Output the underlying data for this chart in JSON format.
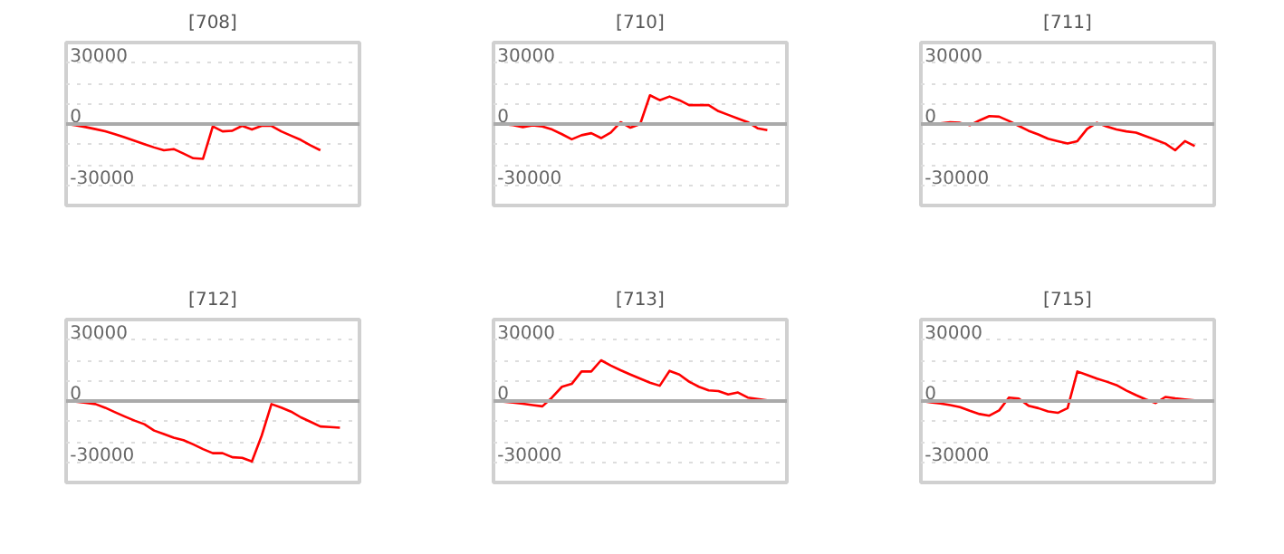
{
  "chart_data": [
    {
      "type": "line",
      "title": "[708]",
      "categories": [
        null,
        null,
        null,
        null,
        null,
        null,
        null,
        null,
        null,
        null,
        null,
        null,
        null,
        null,
        null,
        null,
        null,
        null,
        null,
        null,
        null,
        null,
        null,
        null,
        null,
        null,
        null,
        null,
        null,
        null,
        null
      ],
      "series": [
        {
          "color": "#ff0000",
          "values": [
            0,
            -700,
            -1500,
            -2500,
            -3600,
            -5000,
            -6600,
            -8200,
            -9900,
            -11500,
            -12900,
            -12300,
            -14500,
            -16800,
            -17100,
            -1200,
            -3600,
            -3300,
            -900,
            -2700,
            -900,
            -900,
            -3600,
            -5700,
            -7800,
            -10500,
            -12900,
            null,
            null,
            null,
            null
          ]
        }
      ],
      "ylim": [
        -40000,
        40000
      ],
      "yticks": [
        {
          "value": -40000,
          "label": null
        },
        -30000,
        {
          "value": -20000,
          "label": null
        },
        {
          "value": -10000,
          "label": null
        },
        0,
        {
          "value": 10000,
          "label": null
        },
        {
          "value": 20000,
          "label": null
        },
        30000,
        {
          "value": 40000,
          "label": null
        }
      ],
      "grid": "y",
      "tick_labels": "y",
      "ref_lines": [
        {
          "axis": "y",
          "value": 0,
          "color": "#aaaaaa"
        }
      ]
    },
    {
      "type": "line",
      "title": "[710]",
      "categories": [
        null,
        null,
        null,
        null,
        null,
        null,
        null,
        null,
        null,
        null,
        null,
        null,
        null,
        null,
        null,
        null,
        null,
        null,
        null,
        null,
        null,
        null,
        null,
        null,
        null,
        null,
        null,
        null,
        null,
        null,
        null
      ],
      "series": [
        {
          "color": "#ff0000",
          "values": [
            0,
            -100,
            -500,
            -1500,
            -600,
            -1200,
            -2700,
            -5000,
            -7500,
            -5500,
            -4500,
            -6900,
            -4200,
            900,
            -1800,
            0,
            14100,
            11700,
            13500,
            11700,
            9300,
            9300,
            9300,
            6300,
            4500,
            2700,
            900,
            -2100,
            -3000,
            null,
            null
          ]
        }
      ],
      "ylim": [
        -40000,
        40000
      ],
      "yticks": [
        {
          "value": -40000,
          "label": null
        },
        -30000,
        {
          "value": -20000,
          "label": null
        },
        {
          "value": -10000,
          "label": null
        },
        0,
        {
          "value": 10000,
          "label": null
        },
        {
          "value": 20000,
          "label": null
        },
        30000,
        {
          "value": 40000,
          "label": null
        }
      ],
      "grid": "y",
      "tick_labels": "y",
      "ref_lines": [
        {
          "axis": "y",
          "value": 0,
          "color": "#aaaaaa"
        }
      ]
    },
    {
      "type": "line",
      "title": "[711]",
      "categories": [
        null,
        null,
        null,
        null,
        null,
        null,
        null,
        null,
        null,
        null,
        null,
        null,
        null,
        null,
        null,
        null,
        null,
        null,
        null,
        null,
        null,
        null,
        null,
        null,
        null,
        null,
        null,
        null,
        null,
        null,
        null
      ],
      "series": [
        {
          "color": "#ff0000",
          "values": [
            0,
            0,
            300,
            900,
            600,
            -600,
            1800,
            3900,
            3600,
            1500,
            -900,
            -3300,
            -5100,
            -7200,
            -8400,
            -9600,
            -8400,
            -2400,
            600,
            -1200,
            -2700,
            -3600,
            -4200,
            -6000,
            -7800,
            -9600,
            -12900,
            -8400,
            -10800,
            null,
            null
          ]
        }
      ],
      "ylim": [
        -40000,
        40000
      ],
      "yticks": [
        {
          "value": -40000,
          "label": null
        },
        -30000,
        {
          "value": -20000,
          "label": null
        },
        {
          "value": -10000,
          "label": null
        },
        0,
        {
          "value": 10000,
          "label": null
        },
        {
          "value": 20000,
          "label": null
        },
        30000,
        {
          "value": 40000,
          "label": null
        }
      ],
      "grid": "y",
      "tick_labels": "y",
      "ref_lines": [
        {
          "axis": "y",
          "value": 0,
          "color": "#aaaaaa"
        }
      ]
    },
    {
      "type": "line",
      "title": "[712]",
      "categories": [
        null,
        null,
        null,
        null,
        null,
        null,
        null,
        null,
        null,
        null,
        null,
        null,
        null,
        null,
        null,
        null,
        null,
        null,
        null,
        null,
        null,
        null,
        null,
        null,
        null,
        null,
        null,
        null,
        null,
        null,
        null
      ],
      "series": [
        {
          "color": "#ff0000",
          "values": [
            0,
            -300,
            -900,
            -1500,
            -3300,
            -5500,
            -7600,
            -9600,
            -11400,
            -14500,
            -16200,
            -18000,
            -19200,
            -21300,
            -23600,
            -25600,
            -25600,
            -27600,
            -27900,
            -29700,
            -17000,
            -1500,
            -3200,
            -5200,
            -8000,
            -10200,
            -12500,
            -12800,
            -13100,
            null,
            null
          ]
        }
      ],
      "ylim": [
        -40000,
        40000
      ],
      "yticks": [
        {
          "value": -40000,
          "label": null
        },
        -30000,
        {
          "value": -20000,
          "label": null
        },
        {
          "value": -10000,
          "label": null
        },
        0,
        {
          "value": 10000,
          "label": null
        },
        {
          "value": 20000,
          "label": null
        },
        30000,
        {
          "value": 40000,
          "label": null
        }
      ],
      "grid": "y",
      "tick_labels": "y",
      "ref_lines": [
        {
          "axis": "y",
          "value": 0,
          "color": "#aaaaaa"
        }
      ]
    },
    {
      "type": "line",
      "title": "[713]",
      "categories": [
        null,
        null,
        null,
        null,
        null,
        null,
        null,
        null,
        null,
        null,
        null,
        null,
        null,
        null,
        null,
        null,
        null,
        null,
        null,
        null,
        null,
        null,
        null,
        null,
        null,
        null,
        null,
        null,
        null,
        null,
        null
      ],
      "series": [
        {
          "color": "#ff0000",
          "values": [
            0,
            -300,
            -800,
            -1300,
            -2000,
            -2600,
            1800,
            7000,
            8400,
            14500,
            14500,
            20000,
            17400,
            15100,
            13000,
            11000,
            9000,
            7500,
            14800,
            13000,
            9500,
            7000,
            5200,
            4900,
            3200,
            4200,
            1700,
            1000,
            300,
            null,
            null
          ]
        }
      ],
      "ylim": [
        -40000,
        40000
      ],
      "yticks": [
        {
          "value": -40000,
          "label": null
        },
        -30000,
        {
          "value": -20000,
          "label": null
        },
        {
          "value": -10000,
          "label": null
        },
        0,
        {
          "value": 10000,
          "label": null
        },
        {
          "value": 20000,
          "label": null
        },
        30000,
        {
          "value": 40000,
          "label": null
        }
      ],
      "grid": "y",
      "tick_labels": "y",
      "ref_lines": [
        {
          "axis": "y",
          "value": 0,
          "color": "#aaaaaa"
        }
      ]
    },
    {
      "type": "line",
      "title": "[715]",
      "categories": [
        null,
        null,
        null,
        null,
        null,
        null,
        null,
        null,
        null,
        null,
        null,
        null,
        null,
        null,
        null,
        null,
        null,
        null,
        null,
        null,
        null,
        null,
        null,
        null,
        null,
        null,
        null,
        null,
        null,
        null,
        null
      ],
      "series": [
        {
          "color": "#ff0000",
          "values": [
            0,
            -600,
            -1200,
            -2000,
            -3000,
            -4800,
            -6400,
            -7200,
            -4600,
            1700,
            1200,
            -2300,
            -3500,
            -5100,
            -5800,
            -3500,
            14500,
            12800,
            11000,
            9500,
            7800,
            5200,
            2900,
            800,
            -1000,
            2000,
            1300,
            800,
            300,
            null,
            null
          ]
        }
      ],
      "ylim": [
        -40000,
        40000
      ],
      "yticks": [
        {
          "value": -40000,
          "label": null
        },
        -30000,
        {
          "value": -20000,
          "label": null
        },
        {
          "value": -10000,
          "label": null
        },
        0,
        {
          "value": 10000,
          "label": null
        },
        {
          "value": 20000,
          "label": null
        },
        30000,
        {
          "value": 40000,
          "label": null
        }
      ],
      "grid": "y",
      "tick_labels": "y",
      "ref_lines": [
        {
          "axis": "y",
          "value": 0,
          "color": "#aaaaaa"
        }
      ]
    }
  ]
}
